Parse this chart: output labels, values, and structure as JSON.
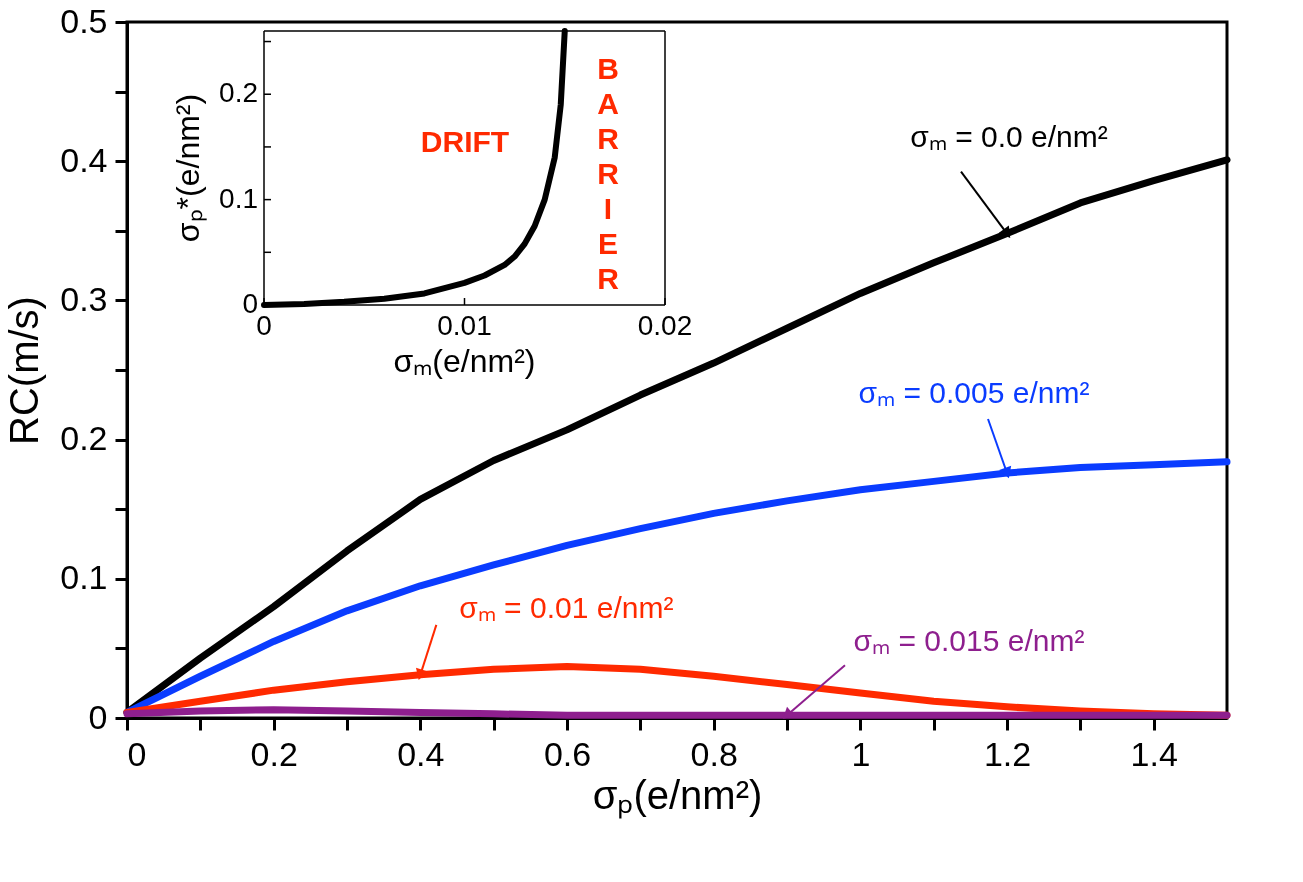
{
  "chart_data": [
    {
      "type": "line",
      "xlabel": "σₚ(e/nm²)",
      "ylabel": "RC(m/s)",
      "x": [
        0,
        0.1,
        0.2,
        0.3,
        0.4,
        0.5,
        0.6,
        0.7,
        0.8,
        0.9,
        1.0,
        1.1,
        1.2,
        1.3,
        1.4,
        1.5
      ],
      "series": [
        {
          "color": "#000000",
          "values": [
            0.004,
            0.043,
            0.08,
            0.12,
            0.157,
            0.185,
            0.207,
            0.232,
            0.255,
            0.28,
            0.305,
            0.327,
            0.348,
            0.37,
            0.386,
            0.401
          ]
        },
        {
          "color": "#0a3cff",
          "values": [
            0.004,
            0.03,
            0.055,
            0.077,
            0.095,
            0.11,
            0.124,
            0.136,
            0.147,
            0.156,
            0.164,
            0.17,
            0.176,
            0.18,
            0.182,
            0.184
          ]
        },
        {
          "color": "#ff2a00",
          "values": [
            0.004,
            0.012,
            0.02,
            0.026,
            0.031,
            0.035,
            0.037,
            0.035,
            0.03,
            0.024,
            0.018,
            0.012,
            0.008,
            0.005,
            0.003,
            0.002
          ]
        },
        {
          "color": "#8e1f8e",
          "values": [
            0.003,
            0.005,
            0.006,
            0.005,
            0.004,
            0.003,
            0.002,
            0.002,
            0.002,
            0.002,
            0.002,
            0.002,
            0.002,
            0.002,
            0.002,
            0.002
          ]
        }
      ],
      "xlim": [
        0,
        1.5
      ],
      "ylim": [
        0,
        0.5
      ],
      "xticks": [
        0,
        {
          "value": 0.1,
          "label": null
        },
        0.2,
        {
          "value": 0.3,
          "label": null
        },
        0.4,
        {
          "value": 0.5,
          "label": null
        },
        0.6,
        {
          "value": 0.7,
          "label": null
        },
        0.8,
        {
          "value": 0.9,
          "label": null
        },
        1,
        {
          "value": 1.1,
          "label": null
        },
        1.2,
        {
          "value": 1.3,
          "label": null
        },
        1.4
      ],
      "yticks": [
        0,
        {
          "value": 0.05,
          "label": null
        },
        0.1,
        {
          "value": 0.15,
          "label": null
        },
        0.2,
        {
          "value": 0.25,
          "label": null
        },
        0.3,
        {
          "value": 0.35,
          "label": null
        },
        0.4,
        {
          "value": 0.45,
          "label": null
        },
        0.5
      ],
      "annotations": [
        {
          "text": "σₘ = 0.0 e/nm²",
          "x": 1.2,
          "y": 0.348
        },
        {
          "text": "σₘ = 0.005 e/nm²",
          "x": 1.2,
          "y": 0.176
        },
        {
          "text": "σₘ = 0.01 e/nm²",
          "x": 0.4,
          "y": 0.031
        },
        {
          "text": "σₘ = 0.015 e/nm²",
          "x": 0.9,
          "y": 0.002
        }
      ],
      "grid": false
    },
    {
      "type": "line",
      "xlabel": "σₘ(e/nm²)",
      "ylabel": "σₚ*(e/nm²)",
      "x": [
        0,
        0.002,
        0.004,
        0.006,
        0.008,
        0.01,
        0.011,
        0.012,
        0.0125,
        0.013,
        0.0135,
        0.014,
        0.0145,
        0.0148,
        0.015
      ],
      "series": [
        {
          "color": "#000000",
          "values": [
            0,
            0.001,
            0.003,
            0.006,
            0.011,
            0.021,
            0.028,
            0.038,
            0.046,
            0.058,
            0.075,
            0.1,
            0.14,
            0.19,
            0.26
          ]
        }
      ],
      "xlim": [
        0,
        0.02
      ],
      "ylim": [
        0,
        0.26
      ],
      "xticks": [
        0,
        0.01,
        0.02
      ],
      "yticks": [
        0,
        {
          "value": 0.05,
          "label": null
        },
        0.1,
        {
          "value": 0.15,
          "label": null
        },
        0.2,
        {
          "value": 0.25,
          "label": null
        }
      ],
      "annotations": [
        "DRIFT",
        "BARRIER"
      ]
    }
  ]
}
